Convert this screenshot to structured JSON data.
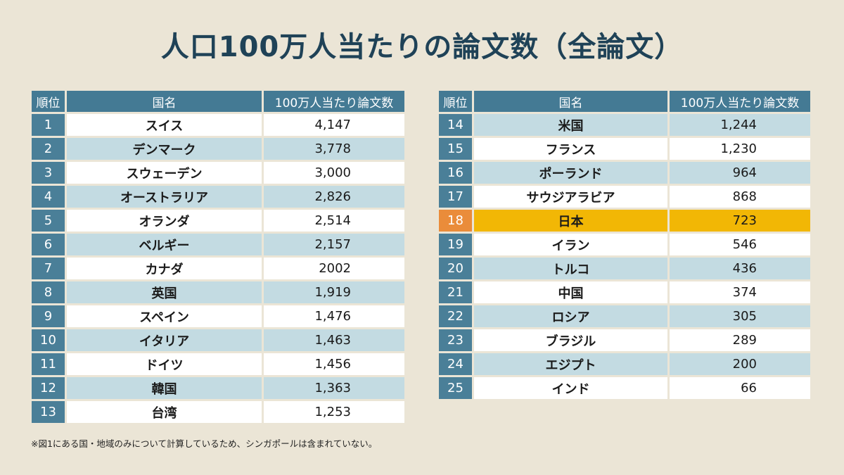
{
  "title": "人口100万人当たりの論文数（全論文）",
  "headers": {
    "rank": "順位",
    "country": "国名",
    "value": "100万人当たり論文数"
  },
  "note": "※図1にある国・地域のみについて計算しているため、シンガポールは含まれていない。",
  "colors": {
    "header": "#447a94",
    "rank_cell": "#4a7f98",
    "row_alt": "#c3dbe2",
    "highlight": "#f2b705",
    "highlight_rank": "#ea8c3a",
    "title": "#1f4257"
  },
  "chart_data": {
    "type": "table",
    "title": "人口100万人当たりの論文数（全論文）",
    "columns": [
      "順位",
      "国名",
      "100万人当たり論文数"
    ],
    "highlight_rank": "18",
    "left_rows": [
      {
        "rank": "1",
        "country": "スイス",
        "value": "4,147"
      },
      {
        "rank": "2",
        "country": "デンマーク",
        "value": "3,778"
      },
      {
        "rank": "3",
        "country": "スウェーデン",
        "value": "3,000"
      },
      {
        "rank": "4",
        "country": "オーストラリア",
        "value": "2,826"
      },
      {
        "rank": "5",
        "country": "オランダ",
        "value": "2,514"
      },
      {
        "rank": "6",
        "country": "ベルギー",
        "value": "2,157"
      },
      {
        "rank": "7",
        "country": "カナダ",
        "value": "2002"
      },
      {
        "rank": "8",
        "country": "英国",
        "value": "1,919"
      },
      {
        "rank": "9",
        "country": "スペイン",
        "value": "1,476"
      },
      {
        "rank": "10",
        "country": "イタリア",
        "value": "1,463"
      },
      {
        "rank": "11",
        "country": "ドイツ",
        "value": "1,456"
      },
      {
        "rank": "12",
        "country": "韓国",
        "value": "1,363"
      },
      {
        "rank": "13",
        "country": "台湾",
        "value": "1,253"
      }
    ],
    "right_rows": [
      {
        "rank": "14",
        "country": "米国",
        "value": "1,244"
      },
      {
        "rank": "15",
        "country": "フランス",
        "value": "1,230"
      },
      {
        "rank": "16",
        "country": "ポーランド",
        "value": "964"
      },
      {
        "rank": "17",
        "country": "サウジアラビア",
        "value": "868"
      },
      {
        "rank": "18",
        "country": "日本",
        "value": "723"
      },
      {
        "rank": "19",
        "country": "イラン",
        "value": "546"
      },
      {
        "rank": "20",
        "country": "トルコ",
        "value": "436"
      },
      {
        "rank": "21",
        "country": "中国",
        "value": "374"
      },
      {
        "rank": "22",
        "country": "ロシア",
        "value": "305"
      },
      {
        "rank": "23",
        "country": "ブラジル",
        "value": "289"
      },
      {
        "rank": "24",
        "country": "エジプト",
        "value": "200"
      },
      {
        "rank": "25",
        "country": "インド",
        "value": "66"
      }
    ]
  }
}
